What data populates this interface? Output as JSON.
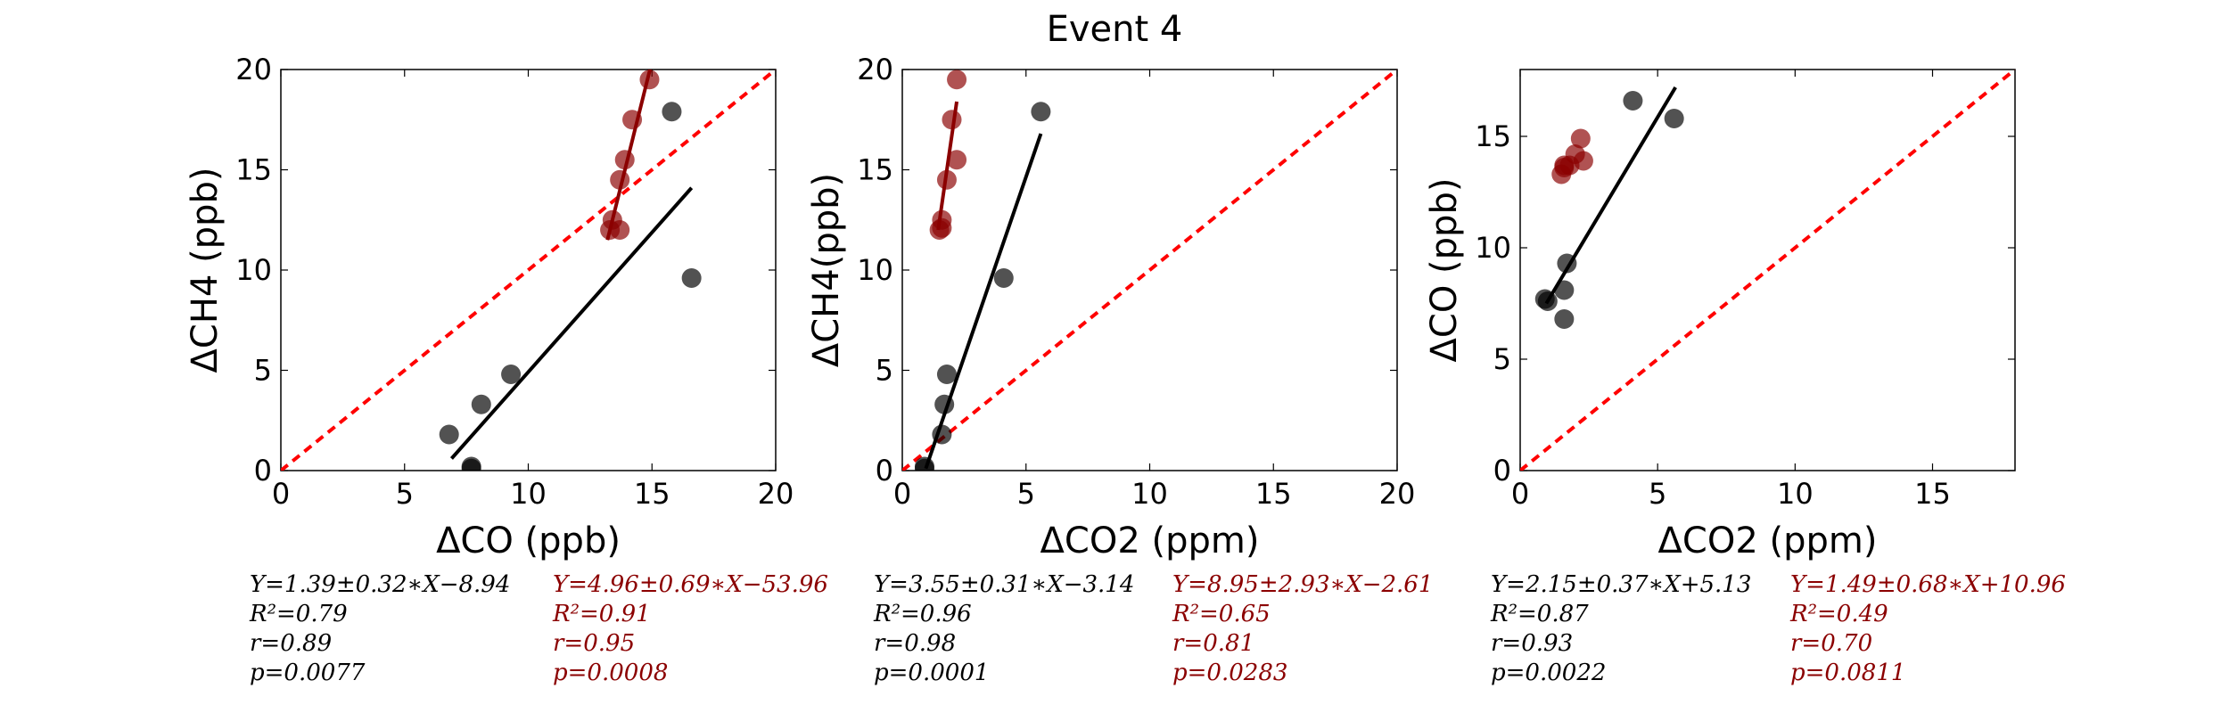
{
  "figure": {
    "title": "Event 4"
  },
  "colors": {
    "black_series": "#000000",
    "red_series": "#8b0000",
    "identity_line": "#ff0000"
  },
  "chart_data": [
    {
      "type": "scatter",
      "xlabel": "ΔCO (ppb)",
      "ylabel": "ΔCH4 (ppb)",
      "xlim": [
        0,
        20
      ],
      "ylim": [
        0,
        20
      ],
      "xticks": [
        0,
        5,
        10,
        15,
        20
      ],
      "yticks": [
        0,
        5,
        10,
        15,
        20
      ],
      "series": [
        {
          "color": "black",
          "points": [
            [
              6.8,
              1.8
            ],
            [
              7.7,
              0.2
            ],
            [
              7.7,
              0.1
            ],
            [
              8.1,
              3.3
            ],
            [
              9.3,
              4.8
            ],
            [
              15.8,
              17.9
            ],
            [
              16.6,
              9.6
            ]
          ],
          "fit": [
            [
              6.9,
              0.6
            ],
            [
              16.6,
              14.1
            ]
          ]
        },
        {
          "color": "red",
          "points": [
            [
              13.3,
              12.0
            ],
            [
              13.4,
              12.5
            ],
            [
              13.7,
              12.0
            ],
            [
              13.7,
              14.5
            ],
            [
              13.9,
              15.5
            ],
            [
              14.2,
              17.5
            ],
            [
              14.9,
              19.5
            ]
          ],
          "fit": [
            [
              13.2,
              11.5
            ],
            [
              15.0,
              20.4
            ]
          ]
        }
      ],
      "identity_line": true,
      "stats": {
        "black": [
          "Y=1.39±0.32∗X−8.94",
          "R²=0.79",
          "r=0.89",
          "p=0.0077"
        ],
        "red": [
          "Y=4.96±0.69∗X−53.96",
          "R²=0.91",
          "r=0.95",
          "p=0.0008"
        ]
      }
    },
    {
      "type": "scatter",
      "xlabel": "ΔCO2 (ppm)",
      "ylabel": "ΔCH4(ppb)",
      "xlim": [
        0,
        20
      ],
      "ylim": [
        0,
        20
      ],
      "xticks": [
        0,
        5,
        10,
        15,
        20
      ],
      "yticks": [
        0,
        5,
        10,
        15,
        20
      ],
      "series": [
        {
          "color": "black",
          "points": [
            [
              0.9,
              0.2
            ],
            [
              0.9,
              0.1
            ],
            [
              1.6,
              1.8
            ],
            [
              1.7,
              3.3
            ],
            [
              1.8,
              4.8
            ],
            [
              4.1,
              9.6
            ],
            [
              5.6,
              17.9
            ]
          ],
          "fit": [
            [
              0.95,
              0.1
            ],
            [
              5.6,
              16.8
            ]
          ]
        },
        {
          "color": "red",
          "points": [
            [
              1.5,
              12.0
            ],
            [
              1.6,
              12.1
            ],
            [
              1.6,
              12.5
            ],
            [
              1.8,
              14.5
            ],
            [
              2.0,
              17.5
            ],
            [
              2.2,
              15.5
            ],
            [
              2.2,
              19.5
            ]
          ],
          "fit": [
            [
              1.45,
              12.0
            ],
            [
              2.2,
              18.4
            ]
          ]
        }
      ],
      "identity_line": true,
      "stats": {
        "black": [
          "Y=3.55±0.31∗X−3.14",
          "R²=0.96",
          "r=0.98",
          "p=0.0001"
        ],
        "red": [
          "Y=8.95±2.93∗X−2.61",
          "R²=0.65",
          "r=0.81",
          "p=0.0283"
        ]
      }
    },
    {
      "type": "scatter",
      "xlabel": "ΔCO2 (ppm)",
      "ylabel": "ΔCO (ppb)",
      "xlim": [
        0,
        18
      ],
      "ylim": [
        0,
        18
      ],
      "xticks": [
        0,
        5,
        10,
        15
      ],
      "yticks": [
        0,
        5,
        10,
        15
      ],
      "series": [
        {
          "color": "black",
          "points": [
            [
              0.9,
              7.7
            ],
            [
              1.0,
              7.6
            ],
            [
              1.6,
              6.8
            ],
            [
              1.6,
              8.1
            ],
            [
              1.7,
              9.3
            ],
            [
              4.1,
              16.6
            ],
            [
              5.6,
              15.8
            ]
          ],
          "fit": [
            [
              0.95,
              7.5
            ],
            [
              5.65,
              17.2
            ]
          ]
        },
        {
          "color": "red",
          "points": [
            [
              1.5,
              13.3
            ],
            [
              1.6,
              13.6
            ],
            [
              1.6,
              13.7
            ],
            [
              1.8,
              13.7
            ],
            [
              2.0,
              14.2
            ],
            [
              2.2,
              14.9
            ],
            [
              2.3,
              13.9
            ]
          ],
          "fit": []
        }
      ],
      "identity_line": true,
      "stats": {
        "black": [
          "Y=2.15±0.37∗X+5.13",
          "R²=0.87",
          "r=0.93",
          "p=0.0022"
        ],
        "red": [
          "Y=1.49±0.68∗X+10.96",
          "R²=0.49",
          "r=0.70",
          "p=0.0811"
        ]
      }
    }
  ]
}
